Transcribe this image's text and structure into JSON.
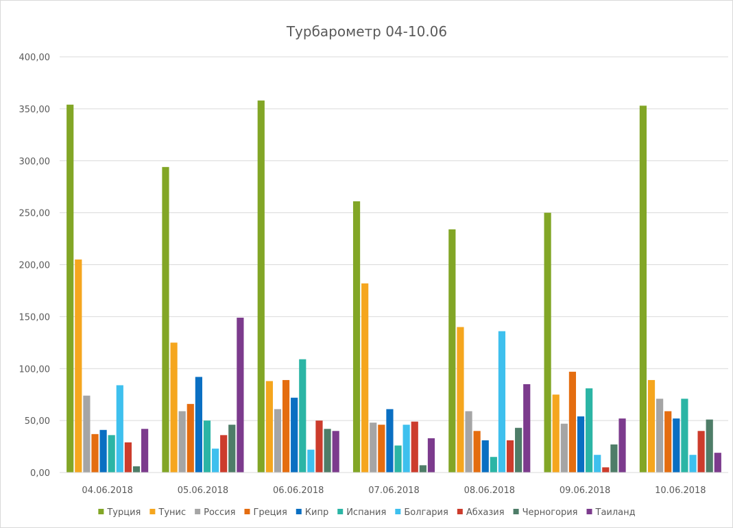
{
  "chart_data": {
    "type": "bar",
    "title": "Турбарометр 04-10.06",
    "xlabel": "",
    "ylabel": "",
    "ylim": [
      0,
      400
    ],
    "y_ticks": [
      "0,00",
      "50,00",
      "100,00",
      "150,00",
      "200,00",
      "250,00",
      "300,00",
      "350,00",
      "400,00"
    ],
    "grid": true,
    "legend_position": "bottom",
    "categories": [
      "04.06.2018",
      "05.06.2018",
      "06.06.2018",
      "07.06.2018",
      "08.06.2018",
      "09.06.2018",
      "10.06.2018"
    ],
    "series": [
      {
        "name": "Турция",
        "color": "#82a626",
        "values": [
          354,
          294,
          358,
          261,
          234,
          250,
          353
        ]
      },
      {
        "name": "Тунис",
        "color": "#f5a61e",
        "values": [
          205,
          125,
          88,
          182,
          140,
          75,
          89
        ]
      },
      {
        "name": "Россия",
        "color": "#a5a5a5",
        "values": [
          74,
          59,
          61,
          48,
          59,
          47,
          71
        ]
      },
      {
        "name": "Греция",
        "color": "#e46d10",
        "values": [
          37,
          66,
          89,
          46,
          40,
          97,
          59
        ]
      },
      {
        "name": "Кипр",
        "color": "#0a6fc2",
        "values": [
          41,
          92,
          72,
          61,
          31,
          54,
          52
        ]
      },
      {
        "name": "Испания",
        "color": "#2bb5a5",
        "values": [
          36,
          50,
          109,
          26,
          15,
          81,
          71
        ]
      },
      {
        "name": "Болгария",
        "color": "#3ec0ee",
        "values": [
          84,
          23,
          22,
          46,
          136,
          17,
          17
        ]
      },
      {
        "name": "Абхазия",
        "color": "#cc3c2c",
        "values": [
          29,
          36,
          50,
          49,
          31,
          5,
          40
        ]
      },
      {
        "name": "Черногория",
        "color": "#4e7d68",
        "values": [
          6,
          46,
          42,
          7,
          43,
          27,
          51
        ]
      },
      {
        "name": "Таиланд",
        "color": "#7c3b8d",
        "values": [
          42,
          149,
          40,
          33,
          85,
          52,
          19
        ]
      }
    ]
  }
}
